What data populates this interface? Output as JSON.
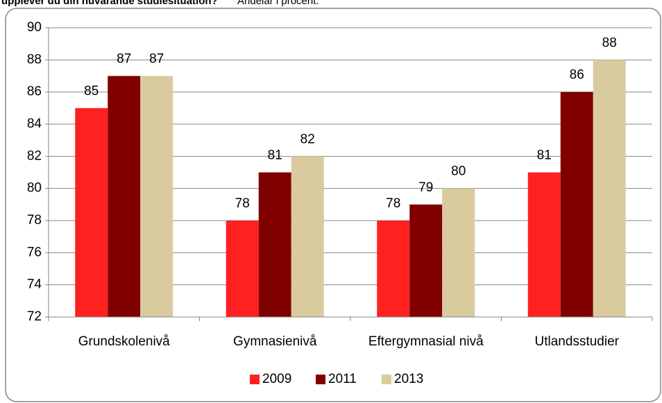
{
  "chart_data": {
    "type": "bar",
    "title": "upplever du din nuvarande studiesituation?\"",
    "subtitle": "Andelar i procent.",
    "categories": [
      "Grundskolenivå",
      "Gymnasienivå",
      "Eftergymnasial nivå",
      "Utlandsstudier"
    ],
    "series": [
      {
        "name": "2009",
        "color": "#ff2020",
        "values": [
          85,
          78,
          78,
          81
        ]
      },
      {
        "name": "2011",
        "color": "#800000",
        "values": [
          87,
          81,
          79,
          86
        ]
      },
      {
        "name": "2013",
        "color": "#d9cb9e",
        "values": [
          87,
          82,
          80,
          88
        ]
      }
    ],
    "ylim": [
      72,
      90
    ],
    "yticks": [
      72,
      74,
      76,
      78,
      80,
      82,
      84,
      86,
      88,
      90
    ],
    "grid": true,
    "legend": "bottom"
  }
}
